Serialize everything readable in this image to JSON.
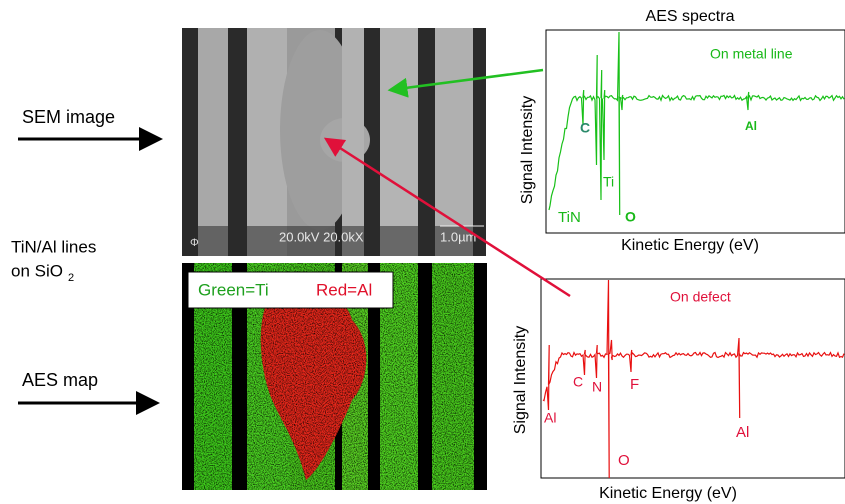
{
  "left_labels": {
    "sem": "SEM image",
    "lines_1": "TiN/Al lines",
    "lines_2": "on SiO",
    "lines_2_sub": "2",
    "map": "AES map"
  },
  "sem_image": {
    "info": "20.0kV 20.0kX",
    "scale": "1.0µm",
    "corner": "Φ"
  },
  "aes_map": {
    "legend_green": "Green=Ti",
    "legend_red": "Red=Al"
  },
  "spectra": [
    {
      "title": "AES spectra",
      "label": "On metal line",
      "y_label": "Signal Intensity",
      "x_label": "Kinetic Energy (eV)",
      "peaks": [
        "C",
        "Al",
        "Ti",
        "TiN",
        "O"
      ]
    },
    {
      "label": "On defect",
      "y_label": "Signal Intensity",
      "x_label": "Kinetic Energy (eV)",
      "peaks": [
        "Al",
        "C",
        "N",
        "F",
        "Al",
        "O"
      ]
    }
  ]
}
